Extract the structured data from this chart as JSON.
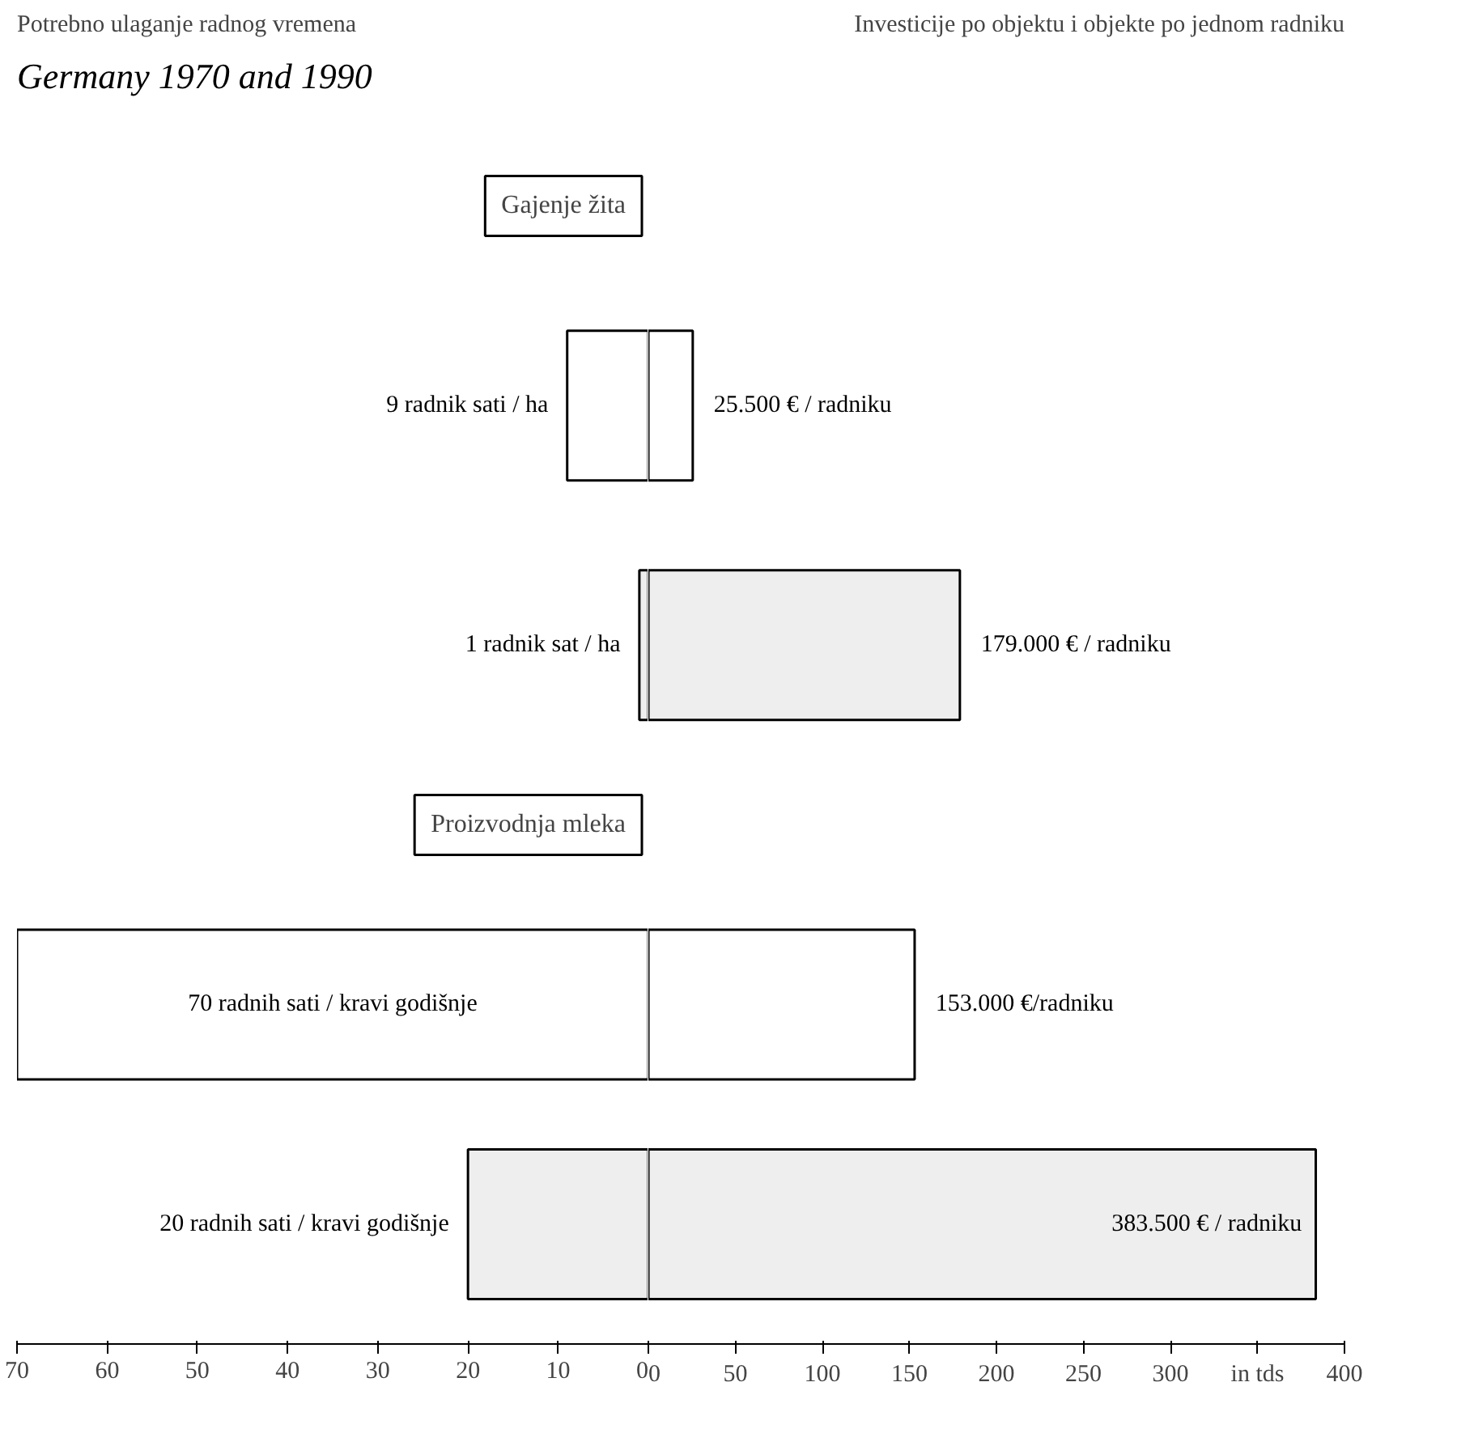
{
  "chart_data": [
    {
      "type": "bar",
      "orientation": "horizontal",
      "title": "Potrebno ulaganje radnog vremena",
      "categories": [
        null,
        null,
        null,
        null
      ],
      "values": [
        9,
        1,
        70,
        20
      ],
      "value_labels": [
        "9 radnik sati / ha",
        "1 radnik sat / ha",
        "70 radnih sati / kravi godišnje",
        "20 radnih sati / kravi godišnje"
      ],
      "colors": [
        "#ffffff",
        "#eeeeee",
        "#ffffff",
        "#eeeeee"
      ],
      "xlim": [
        70,
        0
      ],
      "xticks": [
        70,
        60,
        50,
        40,
        30,
        20,
        10,
        0
      ],
      "annotations": [
        "Germany 1970 and 1990",
        "Gajenje žita",
        "Proizvodnja mleka"
      ],
      "grid": false
    },
    {
      "type": "bar",
      "orientation": "horizontal",
      "title": "Investicije po objektu i objekte po jednom radniku",
      "categories": [
        null,
        null,
        null,
        null
      ],
      "values": [
        25.5,
        179,
        153,
        383.5
      ],
      "annotations": [
        {
          "text": "25.500 € / radniku",
          "x": 25.5
        },
        {
          "text": "179.000 € / radniku",
          "x": 179
        },
        {
          "text": "153.000 €/radniku",
          "x": 153
        },
        {
          "text": "383.500 € / radniku",
          "x": 383.5
        }
      ],
      "colors": [
        "#ffffff",
        "#eeeeee",
        "#ffffff",
        "#eeeeee"
      ],
      "xlim": [
        0,
        400
      ],
      "xticks": [
        0,
        50,
        100,
        150,
        200,
        250,
        300,
        {
          "value": 350,
          "label": "in tds"
        },
        400
      ],
      "grid": false
    }
  ]
}
